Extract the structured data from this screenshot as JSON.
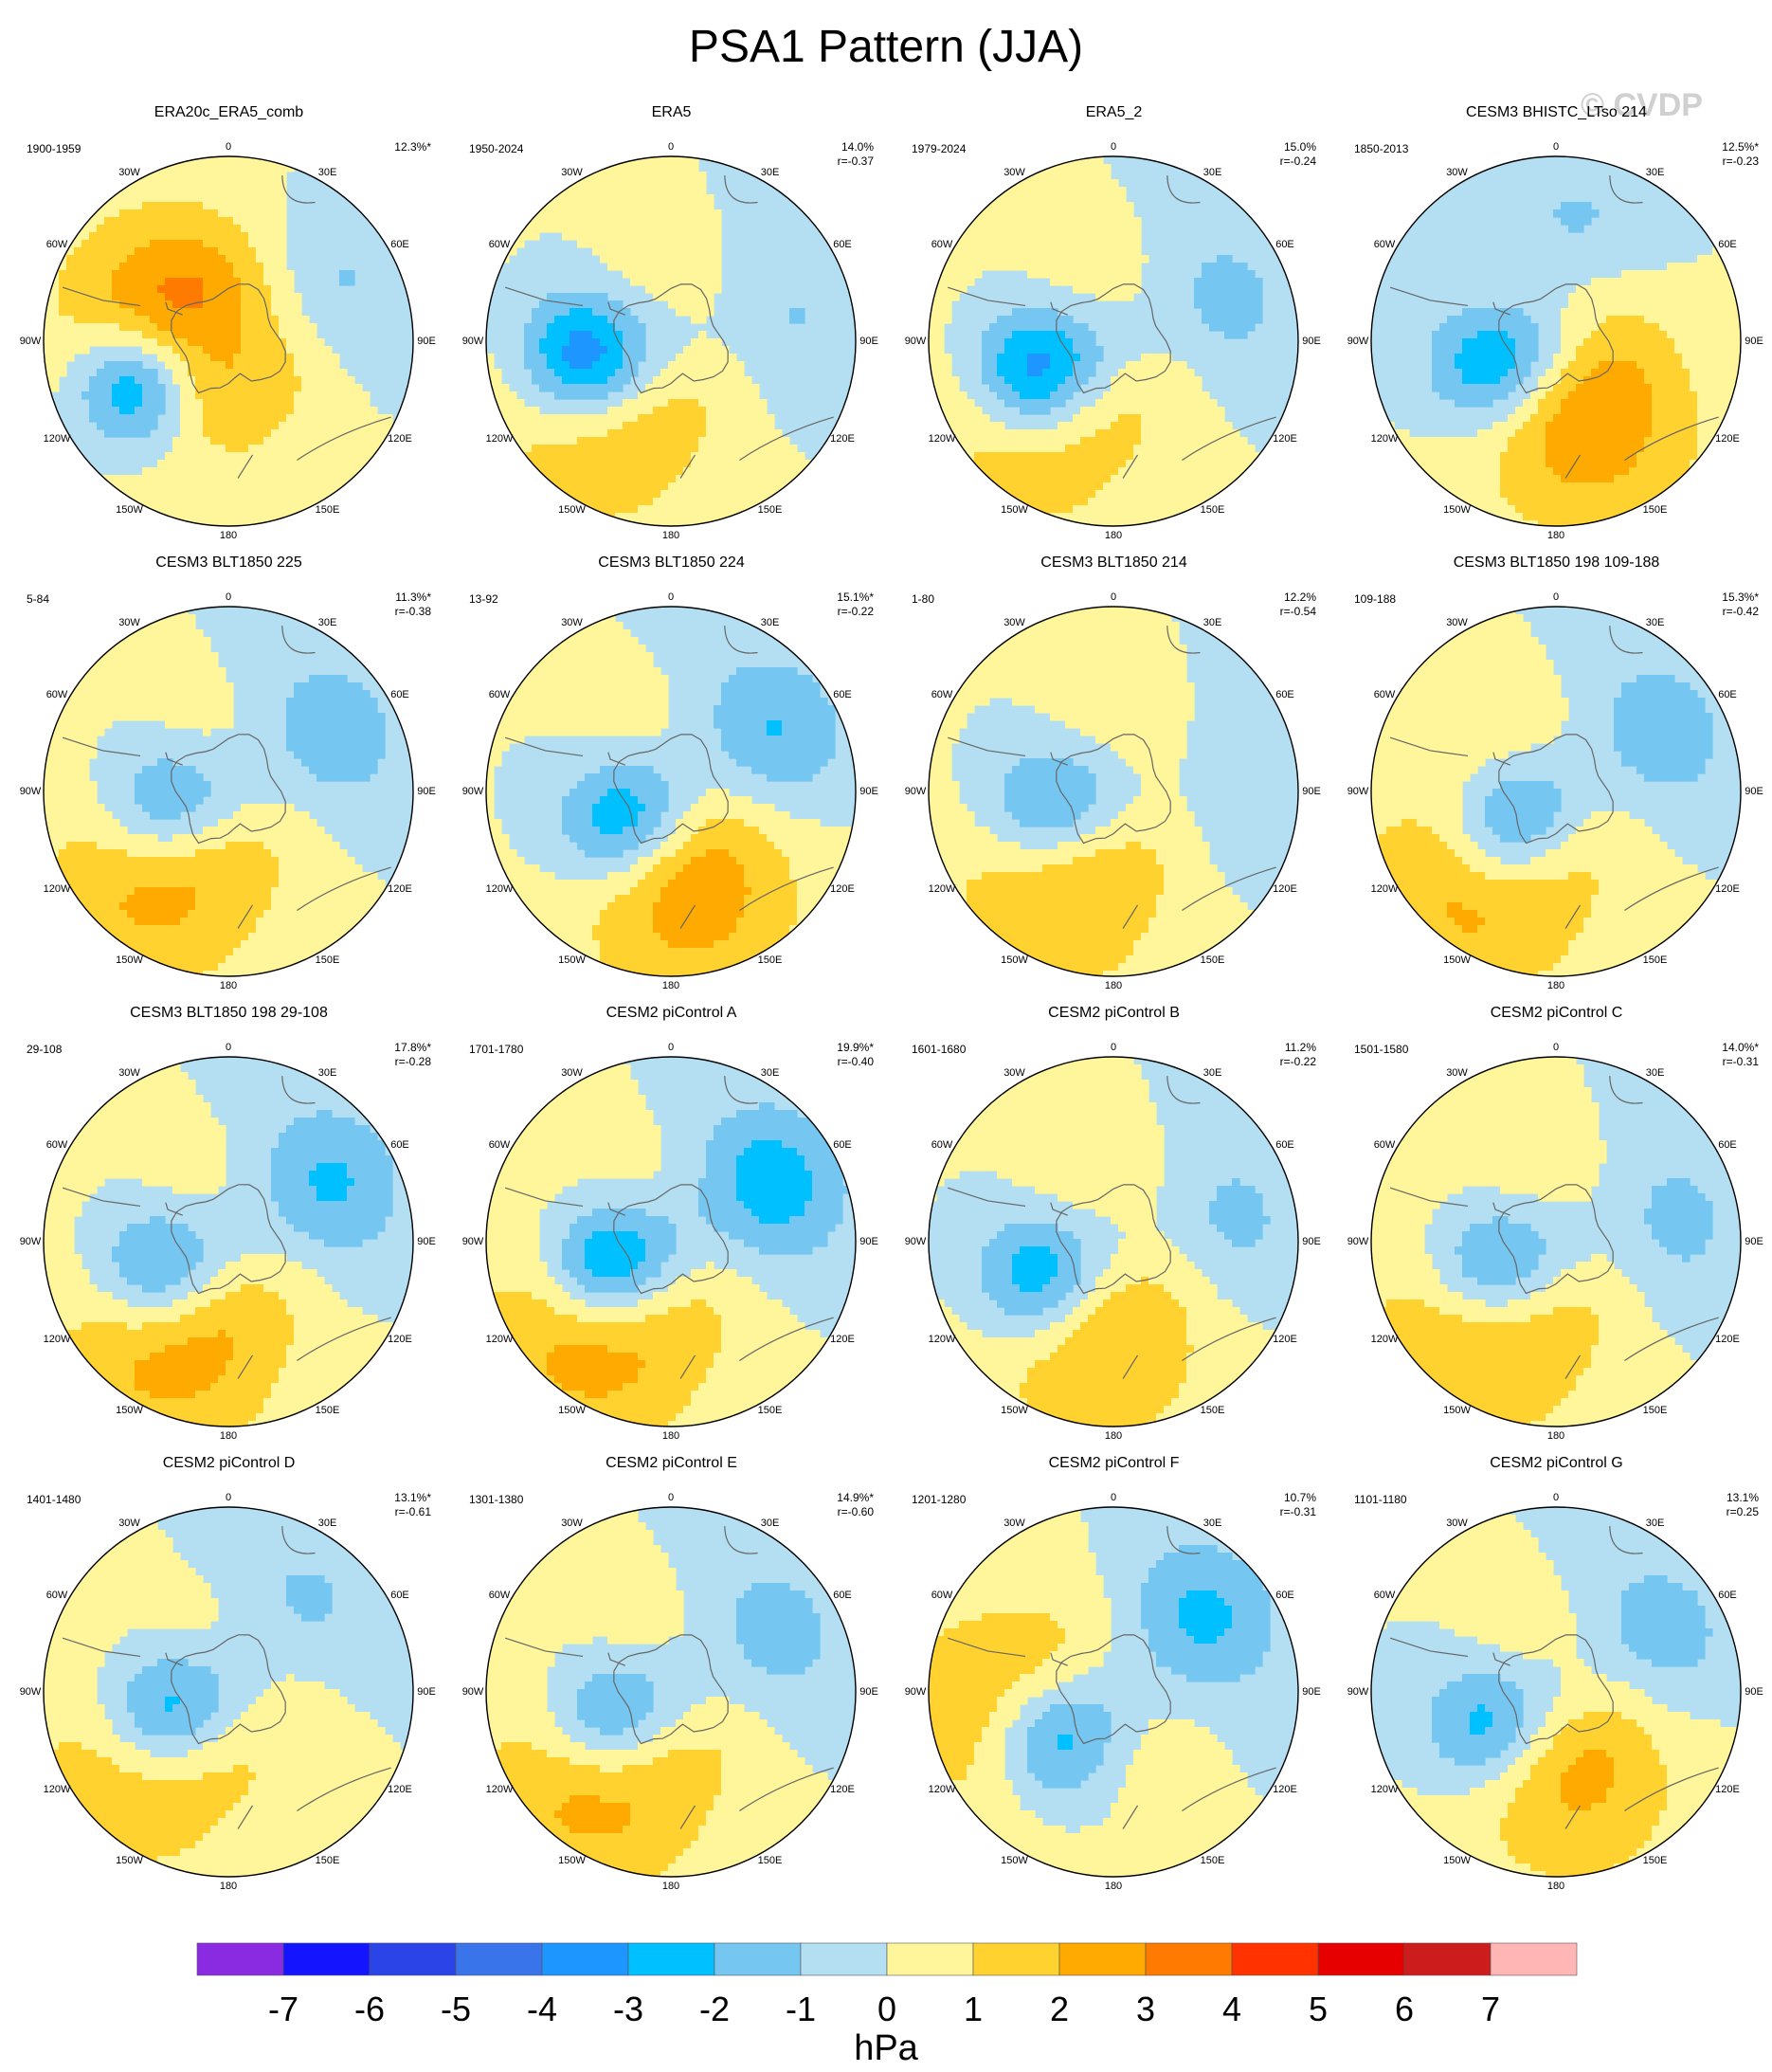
{
  "title": "PSA1 Pattern (JJA)",
  "watermark": "© CVDP",
  "colors": {
    "levels": [
      "#8a2be2",
      "#1414ff",
      "#2a44e8",
      "#3a74ea",
      "#1e96ff",
      "#00c0ff",
      "#76c6f2",
      "#b4dff2",
      "#fff59a",
      "#ffd230",
      "#ffaa00",
      "#ff7a00",
      "#ff3200",
      "#e60000",
      "#cc1c1c",
      "#ffb6b4"
    ],
    "land": "#666666"
  },
  "lon_labels": [
    "0",
    "30E",
    "60E",
    "90E",
    "120E",
    "150E",
    "180",
    "150W",
    "120W",
    "90W",
    "60W",
    "30W"
  ],
  "panels": [
    {
      "title": "ERA20c_ERA5_comb",
      "years": "1900-1959",
      "pct": "12.3%*",
      "r": "",
      "low": {
        "lon": -115,
        "lat": -52,
        "amp": 5
      },
      "high": {
        "lon": -80,
        "lat": -68,
        "amp": 3.5
      },
      "wave": {
        "lon": 60,
        "amp": -1.6
      }
    },
    {
      "title": "ERA5",
      "years": "1950-2024",
      "pct": "14.0%",
      "r": "r=-0.37",
      "low": {
        "lon": -100,
        "lat": -58,
        "amp": 5
      },
      "high": {
        "lon": -140,
        "lat": -45,
        "amp": 1.8
      },
      "wave": {
        "lon": 80,
        "amp": -1.3
      }
    },
    {
      "title": "ERA5_2",
      "years": "1979-2024",
      "pct": "15.0%",
      "r": "r=-0.24",
      "low": {
        "lon": -110,
        "lat": -60,
        "amp": 5
      },
      "high": {
        "lon": -140,
        "lat": -45,
        "amp": 1.8
      },
      "wave": {
        "lon": 70,
        "amp": -1.6
      }
    },
    {
      "title": "CESM3 BHISTC_LTso 214",
      "years": "1850-2013",
      "pct": "12.5%*",
      "r": "r=-0.23",
      "low": {
        "lon": -110,
        "lat": -65,
        "amp": 4
      },
      "high": {
        "lon": 160,
        "lat": -55,
        "amp": 2.5
      },
      "wave": {
        "lon": 10,
        "amp": -1.4
      }
    },
    {
      "title": "CESM3 BLT1850 225",
      "years": "5-84",
      "pct": "11.3%*",
      "r": "r=-0.38",
      "low": {
        "lon": -100,
        "lat": -65,
        "amp": 3.5
      },
      "high": {
        "lon": -140,
        "lat": -45,
        "amp": 2.4
      },
      "wave": {
        "lon": 60,
        "amp": -2
      }
    },
    {
      "title": "CESM3 BLT1850 224",
      "years": "13-92",
      "pct": "15.1%*",
      "r": "r=-0.22",
      "low": {
        "lon": -120,
        "lat": -68,
        "amp": 4
      },
      "high": {
        "lon": 170,
        "lat": -50,
        "amp": 2.5
      },
      "wave": {
        "lon": 60,
        "amp": -2.5
      }
    },
    {
      "title": "CESM3 BLT1850 214",
      "years": "1-80",
      "pct": "12.2%",
      "r": "r=-0.54",
      "low": {
        "lon": -100,
        "lat": -65,
        "amp": 3.5
      },
      "high": {
        "lon": -150,
        "lat": -45,
        "amp": 2
      },
      "wave": {
        "lon": 90,
        "amp": -1
      }
    },
    {
      "title": "CESM3 BLT1850 198 109-188",
      "years": "109-188",
      "pct": "15.3%*",
      "r": "r=-0.42",
      "low": {
        "lon": -125,
        "lat": -68,
        "amp": 4
      },
      "high": {
        "lon": -140,
        "lat": -45,
        "amp": 2.6
      },
      "wave": {
        "lon": 60,
        "amp": -2
      }
    },
    {
      "title": "CESM3 BLT1850 198 29-108",
      "years": "29-108",
      "pct": "17.8%*",
      "r": "r=-0.28",
      "low": {
        "lon": -110,
        "lat": -62,
        "amp": 4
      },
      "high": {
        "lon": -150,
        "lat": -45,
        "amp": 2.6
      },
      "wave": {
        "lon": 60,
        "amp": -2.5
      }
    },
    {
      "title": "CESM2 piControl A",
      "years": "1701-1780",
      "pct": "19.9%*",
      "r": "r=-0.40",
      "low": {
        "lon": -110,
        "lat": -65,
        "amp": 5
      },
      "high": {
        "lon": -140,
        "lat": -45,
        "amp": 2.8
      },
      "wave": {
        "lon": 60,
        "amp": -3
      }
    },
    {
      "title": "CESM2 piControl B",
      "years": "1601-1680",
      "pct": "11.2%",
      "r": "r=-0.22",
      "low": {
        "lon": -115,
        "lat": -60,
        "amp": 4
      },
      "high": {
        "lon": -170,
        "lat": -50,
        "amp": 2
      },
      "wave": {
        "lon": 80,
        "amp": -1.6
      }
    },
    {
      "title": "CESM2 piControl C",
      "years": "1501-1580",
      "pct": "14.0%*",
      "r": "r=-0.31",
      "low": {
        "lon": -110,
        "lat": -65,
        "amp": 4
      },
      "high": {
        "lon": -140,
        "lat": -45,
        "amp": 2.4
      },
      "wave": {
        "lon": 80,
        "amp": -1.6
      }
    },
    {
      "title": "CESM2 piControl D",
      "years": "1401-1480",
      "pct": "13.1%*",
      "r": "r=-0.61",
      "low": {
        "lon": -105,
        "lat": -65,
        "amp": 4
      },
      "high": {
        "lon": -130,
        "lat": -45,
        "amp": 2
      },
      "wave": {
        "lon": 40,
        "amp": -1.4
      }
    },
    {
      "title": "CESM2 piControl E",
      "years": "1301-1380",
      "pct": "14.9%*",
      "r": "r=-0.60",
      "low": {
        "lon": -110,
        "lat": -65,
        "amp": 4
      },
      "high": {
        "lon": -140,
        "lat": -45,
        "amp": 2.6
      },
      "wave": {
        "lon": 60,
        "amp": -1.8
      }
    },
    {
      "title": "CESM2 piControl F",
      "years": "1201-1280",
      "pct": "10.7%",
      "r": "r=-0.31",
      "low": {
        "lon": -130,
        "lat": -62,
        "amp": 4
      },
      "high": {
        "lon": -100,
        "lat": -45,
        "amp": 2
      },
      "wave": {
        "lon": 50,
        "amp": -2.6
      }
    },
    {
      "title": "CESM2 piControl G",
      "years": "1101-1180",
      "pct": "13.1%",
      "r": "r=0.25",
      "low": {
        "lon": -115,
        "lat": -62,
        "amp": 3.5
      },
      "high": {
        "lon": 170,
        "lat": -55,
        "amp": 2
      },
      "wave": {
        "lon": 60,
        "amp": -2
      }
    }
  ],
  "colorbar": {
    "ticks": [
      "-7",
      "-6",
      "-5",
      "-4",
      "-3",
      "-2",
      "-1",
      "0",
      "1",
      "2",
      "3",
      "4",
      "5",
      "6",
      "7"
    ],
    "unit": "hPa"
  }
}
